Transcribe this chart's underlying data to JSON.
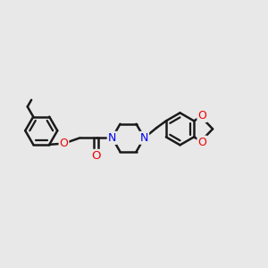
{
  "background_color": "#e8e8e8",
  "bond_color": "#1a1a1a",
  "nitrogen_color": "#0000ee",
  "oxygen_color": "#ee0000",
  "bond_width": 1.8,
  "figsize": [
    3.0,
    3.0
  ],
  "dpi": 100,
  "xlim": [
    0,
    12
  ],
  "ylim": [
    0,
    10
  ]
}
